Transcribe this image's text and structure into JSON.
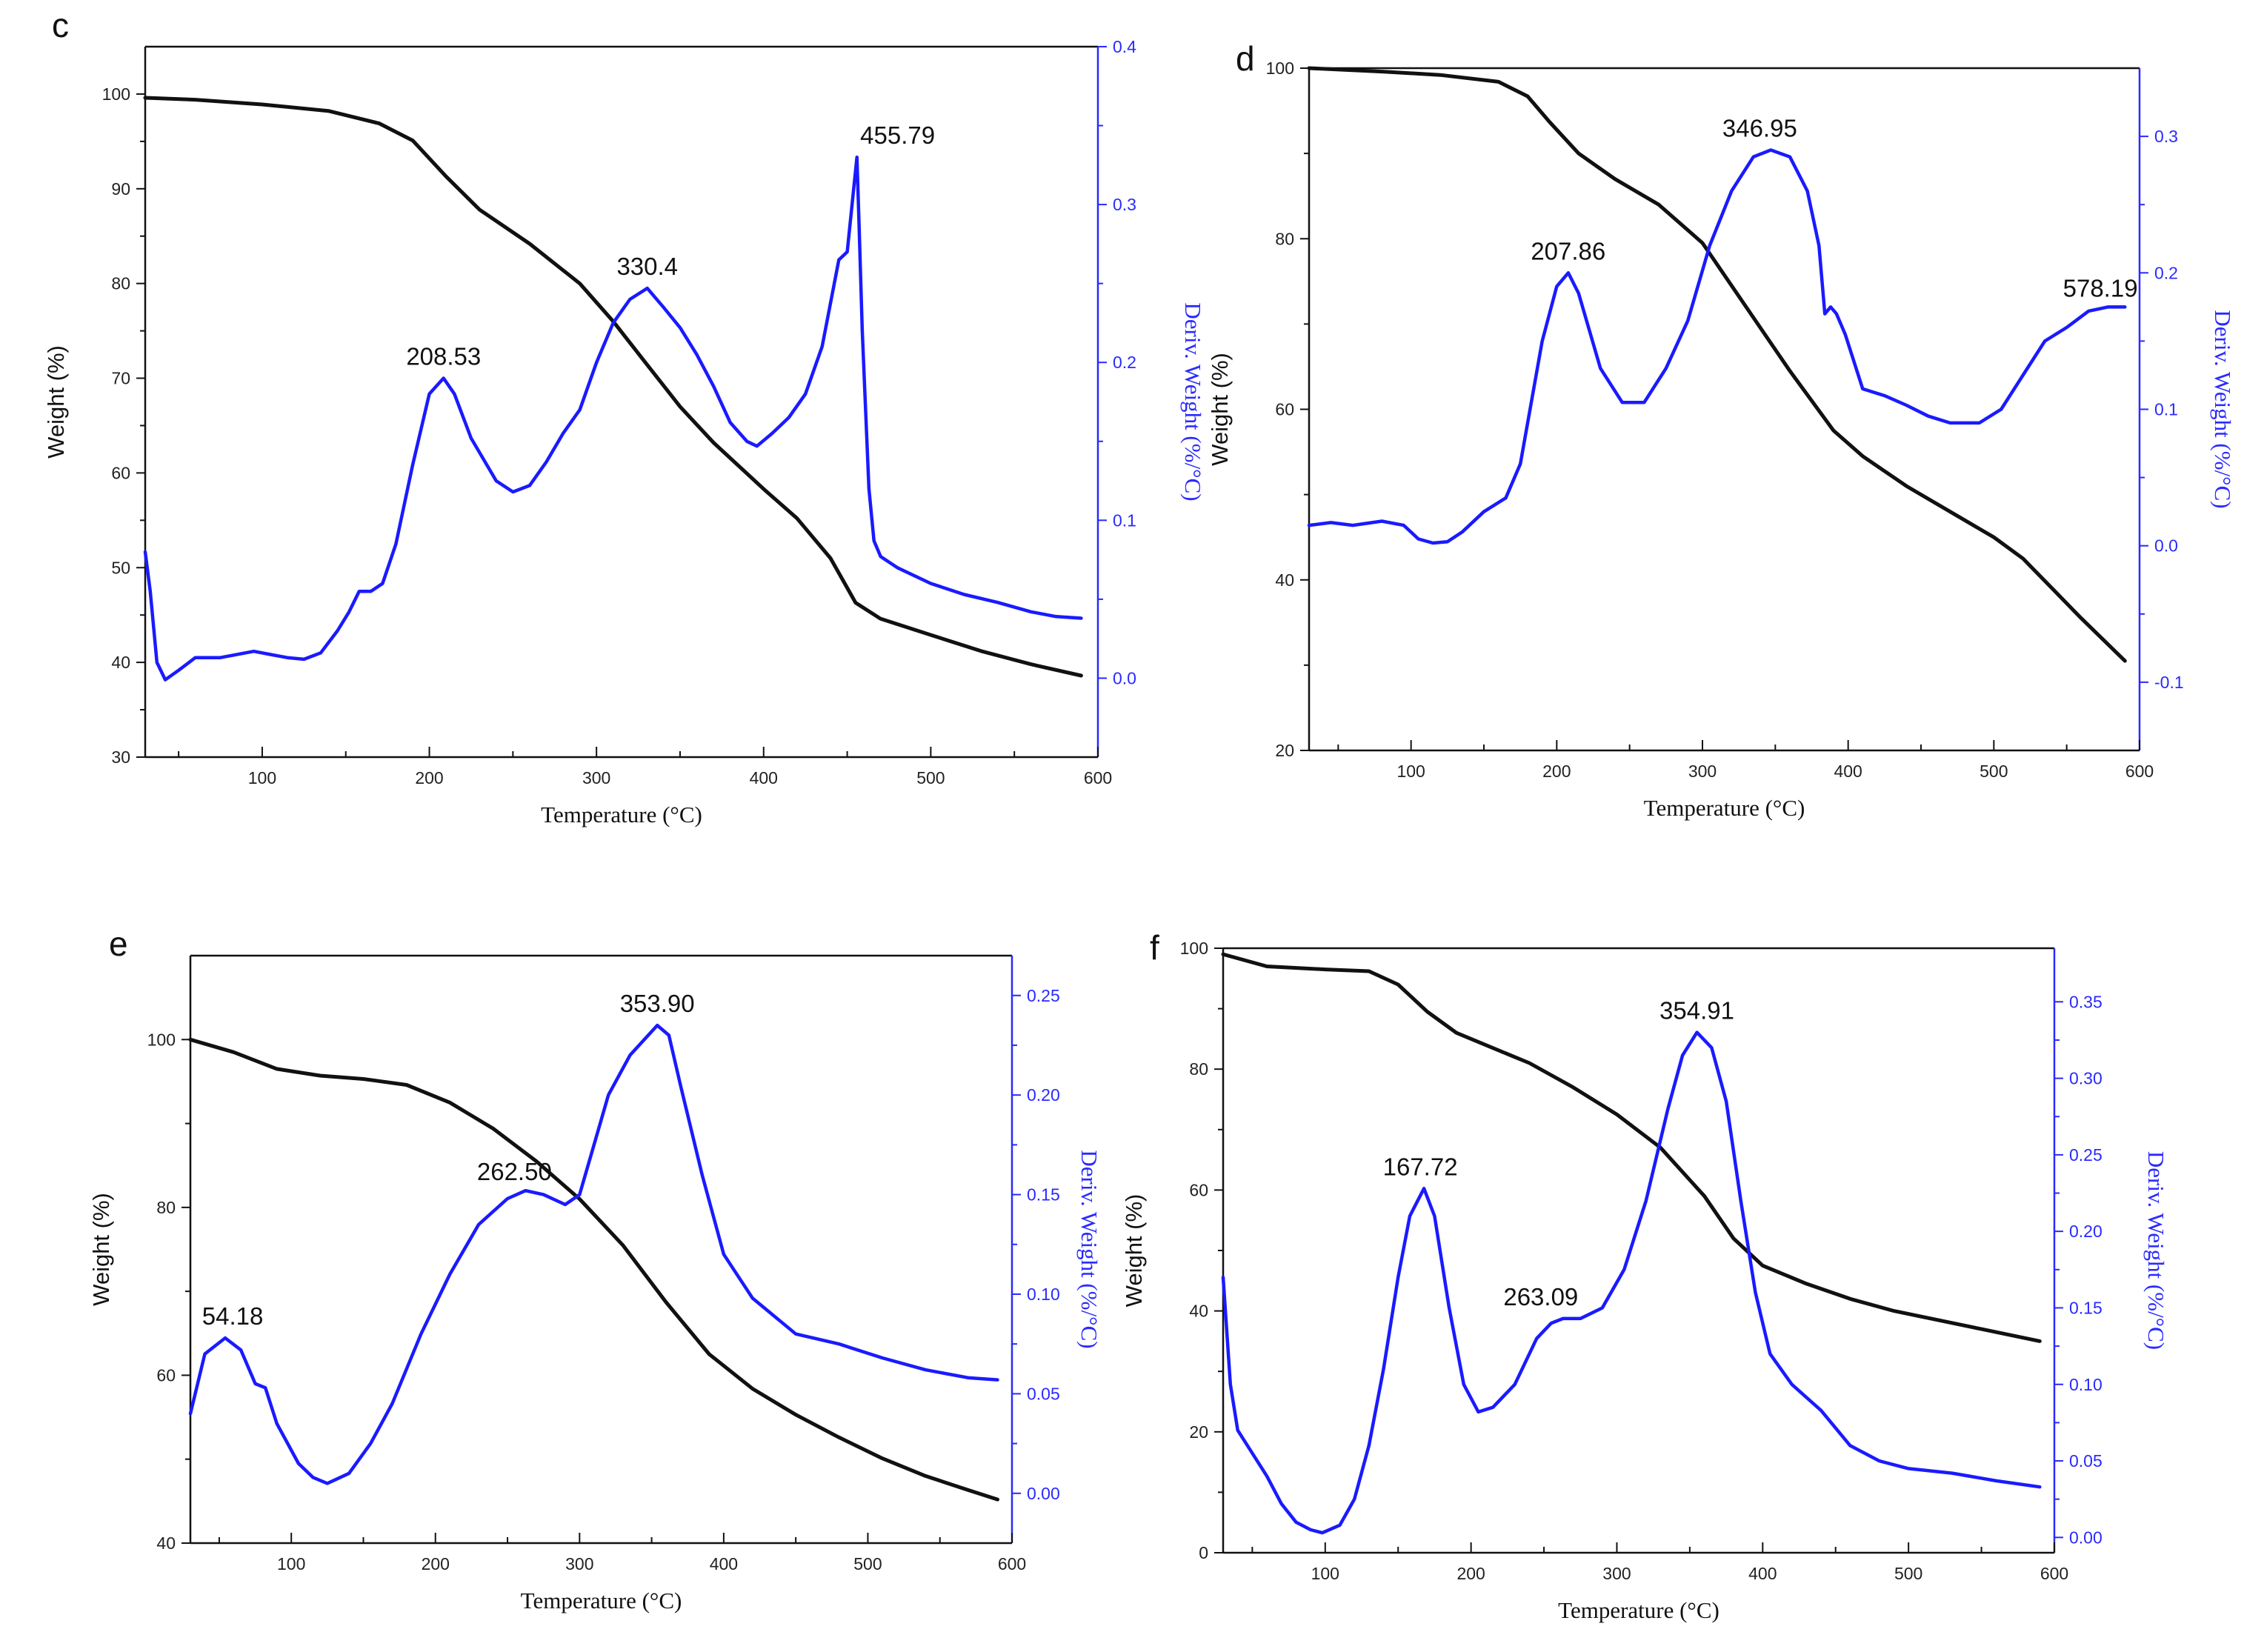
{
  "colors": {
    "weight_curve": "#111111",
    "deriv_curve": "#1a1aff",
    "right_axis": "#2a2aff",
    "frame": "#111111"
  },
  "chart_data": [
    {
      "id": "c",
      "panel_label": "c",
      "type": "line",
      "xlabel": "Temperature (°C)",
      "ylabel_left": "Weight (%)",
      "ylabel_right": "Deriv. Weight (%/°C)",
      "xlim": [
        30,
        600
      ],
      "ylim_left": [
        30,
        105
      ],
      "ylim_right": [
        -0.05,
        0.4
      ],
      "xticks": [
        100,
        200,
        300,
        400,
        500,
        600
      ],
      "xtick_labels": [
        "100",
        "200",
        "300",
        "400",
        "500",
        "600"
      ],
      "yticks_left": [
        30,
        40,
        50,
        60,
        70,
        80,
        90,
        100
      ],
      "ytick_labels_left": [
        "30",
        "40",
        "50",
        "60",
        "70",
        "80",
        "90",
        "100"
      ],
      "yticks_right": [
        0.0,
        0.1,
        0.2,
        0.3,
        0.4
      ],
      "ytick_labels_right": [
        "0.0",
        "0.1",
        "0.2",
        "0.3",
        "0.4"
      ],
      "series": [
        {
          "name": "Weight",
          "axis": "left",
          "x": [
            30,
            60,
            100,
            140,
            170,
            190,
            210,
            230,
            260,
            290,
            310,
            330,
            350,
            370,
            400,
            420,
            440,
            455,
            470,
            500,
            530,
            560,
            590
          ],
          "y": [
            99.6,
            99.4,
            98.9,
            98.2,
            96.9,
            95.1,
            91.3,
            87.8,
            84.2,
            80.0,
            76.0,
            71.5,
            67.0,
            63.2,
            58.3,
            55.2,
            51.0,
            46.3,
            44.6,
            42.9,
            41.2,
            39.8,
            38.6
          ]
        },
        {
          "name": "Deriv. Weight",
          "axis": "right",
          "x": [
            30,
            33,
            37,
            42,
            50,
            60,
            75,
            95,
            105,
            115,
            125,
            135,
            145,
            152,
            158,
            165,
            172,
            180,
            190,
            200,
            208.5,
            215,
            225,
            240,
            250,
            260,
            270,
            280,
            290,
            300,
            310,
            320,
            330.4,
            340,
            350,
            360,
            370,
            380,
            390,
            396,
            405,
            415,
            425,
            435,
            445,
            450,
            455.8,
            457,
            459,
            461,
            463,
            466,
            470,
            480,
            500,
            520,
            540,
            560,
            575,
            590
          ],
          "y": [
            0.08,
            0.055,
            0.01,
            -0.001,
            0.005,
            0.013,
            0.013,
            0.017,
            0.015,
            0.013,
            0.012,
            0.016,
            0.03,
            0.042,
            0.055,
            0.055,
            0.06,
            0.085,
            0.135,
            0.18,
            0.19,
            0.18,
            0.152,
            0.125,
            0.118,
            0.122,
            0.137,
            0.155,
            0.17,
            0.2,
            0.225,
            0.24,
            0.247,
            0.235,
            0.222,
            0.205,
            0.185,
            0.162,
            0.15,
            0.147,
            0.155,
            0.165,
            0.18,
            0.21,
            0.265,
            0.27,
            0.33,
            0.29,
            0.22,
            0.17,
            0.12,
            0.087,
            0.077,
            0.07,
            0.06,
            0.053,
            0.048,
            0.042,
            0.039,
            0.038
          ]
        }
      ],
      "annotations": [
        {
          "text": "208.53",
          "x": 208.53,
          "y": 0.19,
          "axis": "right"
        },
        {
          "text": "330.4",
          "x": 330.4,
          "y": 0.247,
          "axis": "right"
        },
        {
          "text": "455.79",
          "x": 455.79,
          "y": 0.33,
          "axis": "right"
        }
      ]
    },
    {
      "id": "d",
      "panel_label": "d",
      "type": "line",
      "xlabel": "Temperature (°C)",
      "ylabel_left": "Weight (%)",
      "ylabel_right": "Deriv. Weight (%/°C)",
      "xlim": [
        30,
        600
      ],
      "ylim_left": [
        20,
        100
      ],
      "ylim_right": [
        -0.15,
        0.35
      ],
      "xticks": [
        100,
        200,
        300,
        400,
        500,
        600
      ],
      "xtick_labels": [
        "100",
        "200",
        "300",
        "400",
        "500",
        "600"
      ],
      "yticks_left": [
        20,
        40,
        60,
        80,
        100
      ],
      "ytick_labels_left": [
        "20",
        "40",
        "60",
        "80",
        "100"
      ],
      "yticks_right": [
        -0.1,
        0.0,
        0.1,
        0.2,
        0.3
      ],
      "ytick_labels_right": [
        "-0.1",
        "0.0",
        "0.1",
        "0.2",
        "0.3"
      ],
      "series": [
        {
          "name": "Weight",
          "axis": "left",
          "x": [
            30,
            80,
            120,
            160,
            180,
            195,
            215,
            240,
            270,
            300,
            330,
            360,
            390,
            410,
            440,
            470,
            500,
            520,
            540,
            560,
            590
          ],
          "y": [
            100,
            99.6,
            99.2,
            98.4,
            96.7,
            93.7,
            90.0,
            87.0,
            84.0,
            79.5,
            72.0,
            64.5,
            57.5,
            54.5,
            51.0,
            48.0,
            45.0,
            42.5,
            39.0,
            35.5,
            30.5
          ]
        },
        {
          "name": "Deriv. Weight",
          "axis": "right",
          "x": [
            30,
            45,
            60,
            80,
            95,
            105,
            115,
            125,
            135,
            150,
            165,
            175,
            190,
            200,
            207.9,
            215,
            230,
            245,
            260,
            275,
            290,
            305,
            320,
            335,
            346.95,
            360,
            372,
            380,
            384,
            388,
            392,
            398,
            410,
            425,
            440,
            455,
            470,
            490,
            505,
            520,
            535,
            550,
            565,
            578.19,
            590
          ],
          "y": [
            0.015,
            0.017,
            0.015,
            0.018,
            0.015,
            0.005,
            0.002,
            0.003,
            0.01,
            0.025,
            0.035,
            0.06,
            0.15,
            0.19,
            0.2,
            0.185,
            0.13,
            0.105,
            0.105,
            0.13,
            0.165,
            0.22,
            0.26,
            0.285,
            0.29,
            0.285,
            0.26,
            0.22,
            0.17,
            0.175,
            0.17,
            0.155,
            0.115,
            0.11,
            0.103,
            0.095,
            0.09,
            0.09,
            0.1,
            0.125,
            0.15,
            0.16,
            0.172,
            0.175,
            0.175
          ]
        }
      ],
      "annotations": [
        {
          "text": "207.86",
          "x": 207.86,
          "y": 0.2,
          "axis": "right"
        },
        {
          "text": "346.95",
          "x": 346.95,
          "y": 0.29,
          "axis": "right"
        },
        {
          "text": "578.19",
          "x": 578.19,
          "y": 0.175,
          "axis": "right"
        }
      ]
    },
    {
      "id": "e",
      "panel_label": "e",
      "type": "line",
      "xlabel": "Temperature (°C)",
      "ylabel_left": "Weight (%)",
      "ylabel_right": "Deriv. Weight (%/°C)",
      "xlim": [
        30,
        600
      ],
      "ylim_left": [
        40,
        110
      ],
      "ylim_right": [
        -0.025,
        0.27
      ],
      "xticks": [
        100,
        200,
        300,
        400,
        500,
        600
      ],
      "xtick_labels": [
        "100",
        "200",
        "300",
        "400",
        "500",
        "600"
      ],
      "yticks_left": [
        40,
        60,
        80,
        100
      ],
      "ytick_labels_left": [
        "40",
        "60",
        "80",
        "100"
      ],
      "yticks_right": [
        0.0,
        0.05,
        0.1,
        0.15,
        0.2,
        0.25
      ],
      "ytick_labels_right": [
        "0.00",
        "0.05",
        "0.10",
        "0.15",
        "0.20",
        "0.25"
      ],
      "series": [
        {
          "name": "Weight",
          "axis": "left",
          "x": [
            30,
            60,
            90,
            120,
            150,
            180,
            210,
            240,
            270,
            300,
            330,
            360,
            390,
            420,
            450,
            480,
            510,
            540,
            570,
            590
          ],
          "y": [
            100,
            98.5,
            96.5,
            95.7,
            95.3,
            94.6,
            92.5,
            89.4,
            85.5,
            81.0,
            75.5,
            68.7,
            62.5,
            58.4,
            55.3,
            52.6,
            50.1,
            48.0,
            46.3,
            45.2
          ]
        },
        {
          "name": "Deriv. Weight",
          "axis": "right",
          "x": [
            30,
            40,
            54.18,
            65,
            75,
            82,
            90,
            105,
            115,
            125,
            140,
            155,
            170,
            190,
            210,
            230,
            250,
            262.5,
            275,
            290,
            300,
            310,
            320,
            335,
            353.9,
            362,
            370,
            385,
            400,
            420,
            450,
            480,
            510,
            540,
            570,
            590
          ],
          "y": [
            0.04,
            0.07,
            0.078,
            0.072,
            0.055,
            0.053,
            0.035,
            0.015,
            0.008,
            0.005,
            0.01,
            0.025,
            0.045,
            0.08,
            0.11,
            0.135,
            0.148,
            0.152,
            0.15,
            0.145,
            0.15,
            0.175,
            0.2,
            0.22,
            0.235,
            0.23,
            0.205,
            0.16,
            0.12,
            0.098,
            0.08,
            0.075,
            0.068,
            0.062,
            0.058,
            0.057
          ]
        }
      ],
      "annotations": [
        {
          "text": "54.18",
          "x": 54.18,
          "y": 0.078,
          "axis": "right"
        },
        {
          "text": "262.50",
          "x": 262.5,
          "y": 0.152,
          "axis": "right"
        },
        {
          "text": "353.90",
          "x": 353.9,
          "y": 0.235,
          "axis": "right"
        }
      ]
    },
    {
      "id": "f",
      "panel_label": "f",
      "type": "line",
      "xlabel": "Temperature (°C)",
      "ylabel_left": "Weight (%)",
      "ylabel_right": "Deriv. Weight (%/°C)",
      "xlim": [
        30,
        600
      ],
      "ylim_left": [
        0,
        100
      ],
      "ylim_right": [
        -0.01,
        0.385
      ],
      "xticks": [
        100,
        200,
        300,
        400,
        500,
        600
      ],
      "xtick_labels": [
        "100",
        "200",
        "300",
        "400",
        "500",
        "600"
      ],
      "yticks_left": [
        0,
        20,
        40,
        60,
        80,
        100
      ],
      "ytick_labels_left": [
        "0",
        "20",
        "40",
        "60",
        "80",
        "100"
      ],
      "yticks_right": [
        0.0,
        0.05,
        0.1,
        0.15,
        0.2,
        0.25,
        0.3,
        0.35
      ],
      "ytick_labels_right": [
        "0.00",
        "0.05",
        "0.10",
        "0.15",
        "0.20",
        "0.25",
        "0.30",
        "0.35"
      ],
      "series": [
        {
          "name": "Weight",
          "axis": "left",
          "x": [
            30,
            60,
            100,
            130,
            150,
            170,
            190,
            210,
            240,
            270,
            300,
            330,
            360,
            380,
            400,
            430,
            460,
            490,
            520,
            550,
            590
          ],
          "y": [
            99,
            97,
            96.5,
            96.2,
            94,
            89.5,
            86,
            84,
            81,
            77,
            72.5,
            67,
            59,
            52,
            47.5,
            44.5,
            42,
            40,
            38.5,
            37,
            35
          ]
        },
        {
          "name": "Deriv. Weight",
          "axis": "right",
          "x": [
            30,
            35,
            40,
            50,
            60,
            70,
            80,
            90,
            98,
            110,
            120,
            130,
            140,
            150,
            158,
            167.72,
            175,
            185,
            195,
            205,
            215,
            230,
            245,
            255,
            263.09,
            275,
            290,
            305,
            320,
            335,
            345,
            354.91,
            365,
            375,
            385,
            395,
            405,
            420,
            440,
            460,
            480,
            500,
            530,
            560,
            590
          ],
          "y": [
            0.17,
            0.1,
            0.07,
            0.055,
            0.04,
            0.022,
            0.01,
            0.005,
            0.003,
            0.008,
            0.025,
            0.06,
            0.11,
            0.17,
            0.21,
            0.228,
            0.21,
            0.15,
            0.1,
            0.082,
            0.085,
            0.1,
            0.13,
            0.14,
            0.143,
            0.143,
            0.15,
            0.175,
            0.22,
            0.28,
            0.315,
            0.33,
            0.32,
            0.285,
            0.22,
            0.16,
            0.12,
            0.1,
            0.083,
            0.06,
            0.05,
            0.045,
            0.042,
            0.037,
            0.033
          ]
        }
      ],
      "annotations": [
        {
          "text": "167.72",
          "x": 167.72,
          "y": 0.228,
          "axis": "right"
        },
        {
          "text": "263.09",
          "x": 263.09,
          "y": 0.143,
          "axis": "right"
        },
        {
          "text": "354.91",
          "x": 354.91,
          "y": 0.33,
          "axis": "right"
        }
      ]
    }
  ]
}
